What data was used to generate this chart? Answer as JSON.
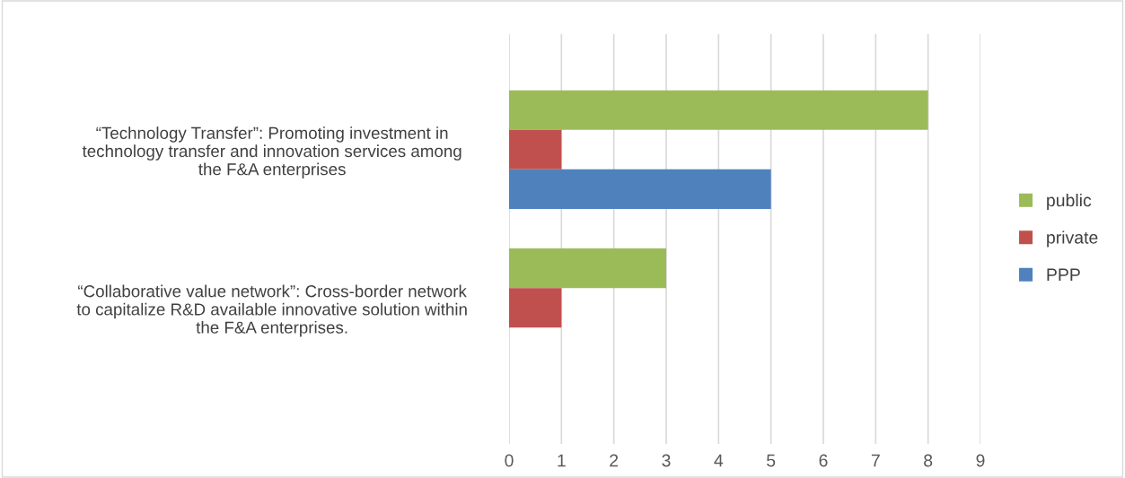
{
  "chart_data": {
    "type": "bar",
    "orientation": "horizontal",
    "categories": [
      "“Technology Transfer”: Promoting investment in\ntechnology transfer and innovation services among\nthe F&A enterprises",
      "“Collaborative value network”: Cross-border network\nto capitalize R&D available innovative solution within\nthe F&A enterprises."
    ],
    "series": [
      {
        "name": "public",
        "color": "#9bbb59",
        "values": [
          8,
          3
        ]
      },
      {
        "name": "private",
        "color": "#c0504d",
        "values": [
          1,
          1
        ]
      },
      {
        "name": "PPP",
        "color": "#4f81bd",
        "values": [
          5,
          null
        ]
      }
    ],
    "xlim": [
      0,
      9
    ],
    "xticks": [
      0,
      1,
      2,
      3,
      4,
      5,
      6,
      7,
      8,
      9
    ],
    "grid": "x",
    "legend": "right"
  }
}
